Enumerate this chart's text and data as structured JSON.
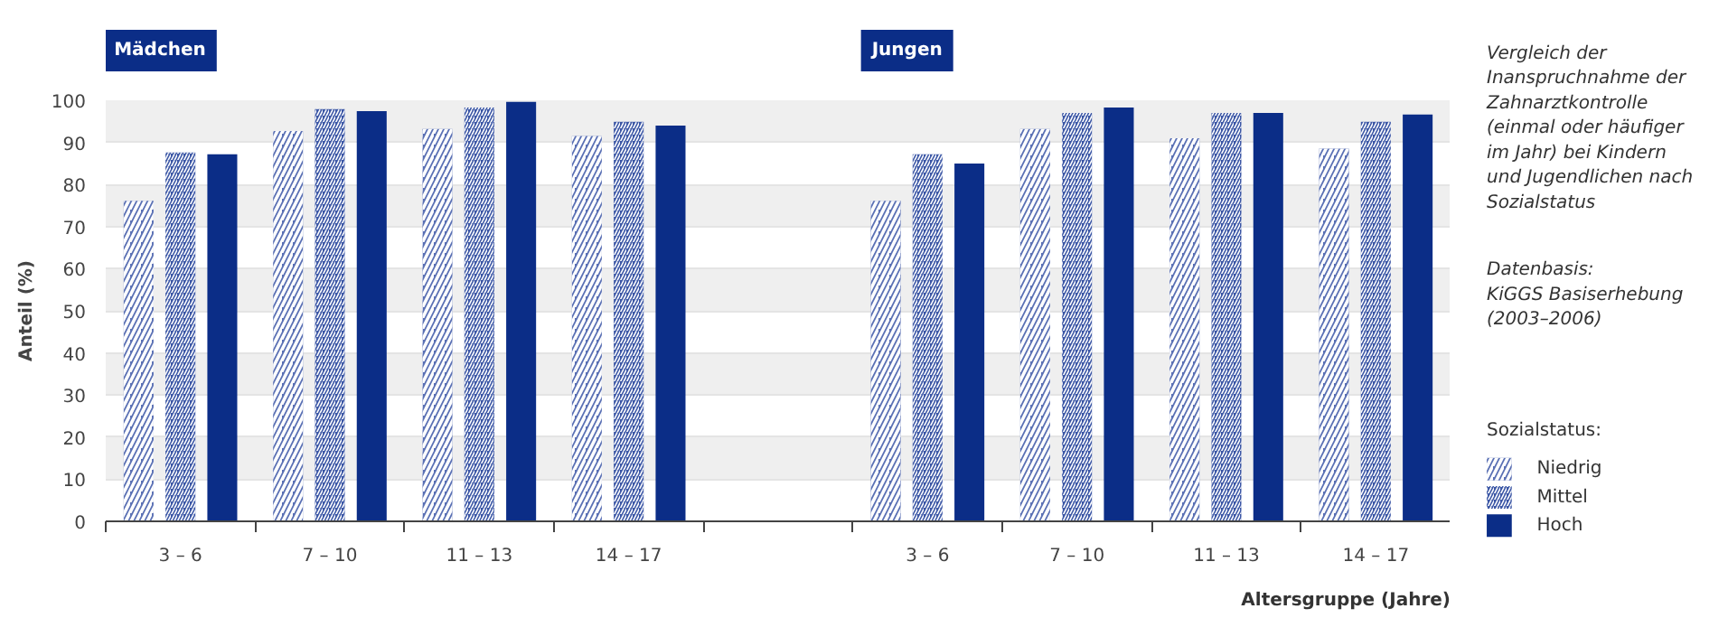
{
  "chart_data": {
    "type": "bar",
    "title": "Vergleich der\nInanspruchnahme der\nZahnarztkontrolle\n(einmal oder häufiger\nim Jahr) bei Kindern\nund Jugendlichen nach\nSozialstatus",
    "annotations": [
      "Mädchen",
      "Jungen",
      "Datenbasis:\nKiGGS Basiserhebung\n(2003–2006)"
    ],
    "xlabel": "Altersgruppe (Jahre)",
    "ylabel": "Anteil (%)",
    "legend_title": "Sozialstatus:",
    "categories": [
      "3 – 6",
      "7 – 10",
      "11 – 13",
      "14 – 17",
      null,
      "3 – 6",
      "7 – 10",
      "11 – 13",
      "14 – 17"
    ],
    "series": [
      {
        "name": "Niedrig",
        "color": "#5a70b4",
        "values": [
          76.1,
          92.7,
          93.2,
          91.5,
          null,
          76.1,
          93.2,
          91.0,
          88.5
        ]
      },
      {
        "name": "Mittel",
        "color": "#3d58a6",
        "values": [
          87.6,
          97.9,
          98.3,
          94.9,
          null,
          87.2,
          97.0,
          97.0,
          94.9
        ]
      },
      {
        "name": "Hoch",
        "color": "#0b2d87",
        "values": [
          87.2,
          97.4,
          99.6,
          94.0,
          null,
          85.0,
          98.3,
          97.0,
          96.6
        ]
      }
    ],
    "ylim": [
      0,
      100
    ],
    "yticks": [
      0,
      10,
      20,
      30,
      40,
      50,
      60,
      70,
      80,
      90,
      100
    ],
    "grid": "y",
    "legend": "right"
  }
}
